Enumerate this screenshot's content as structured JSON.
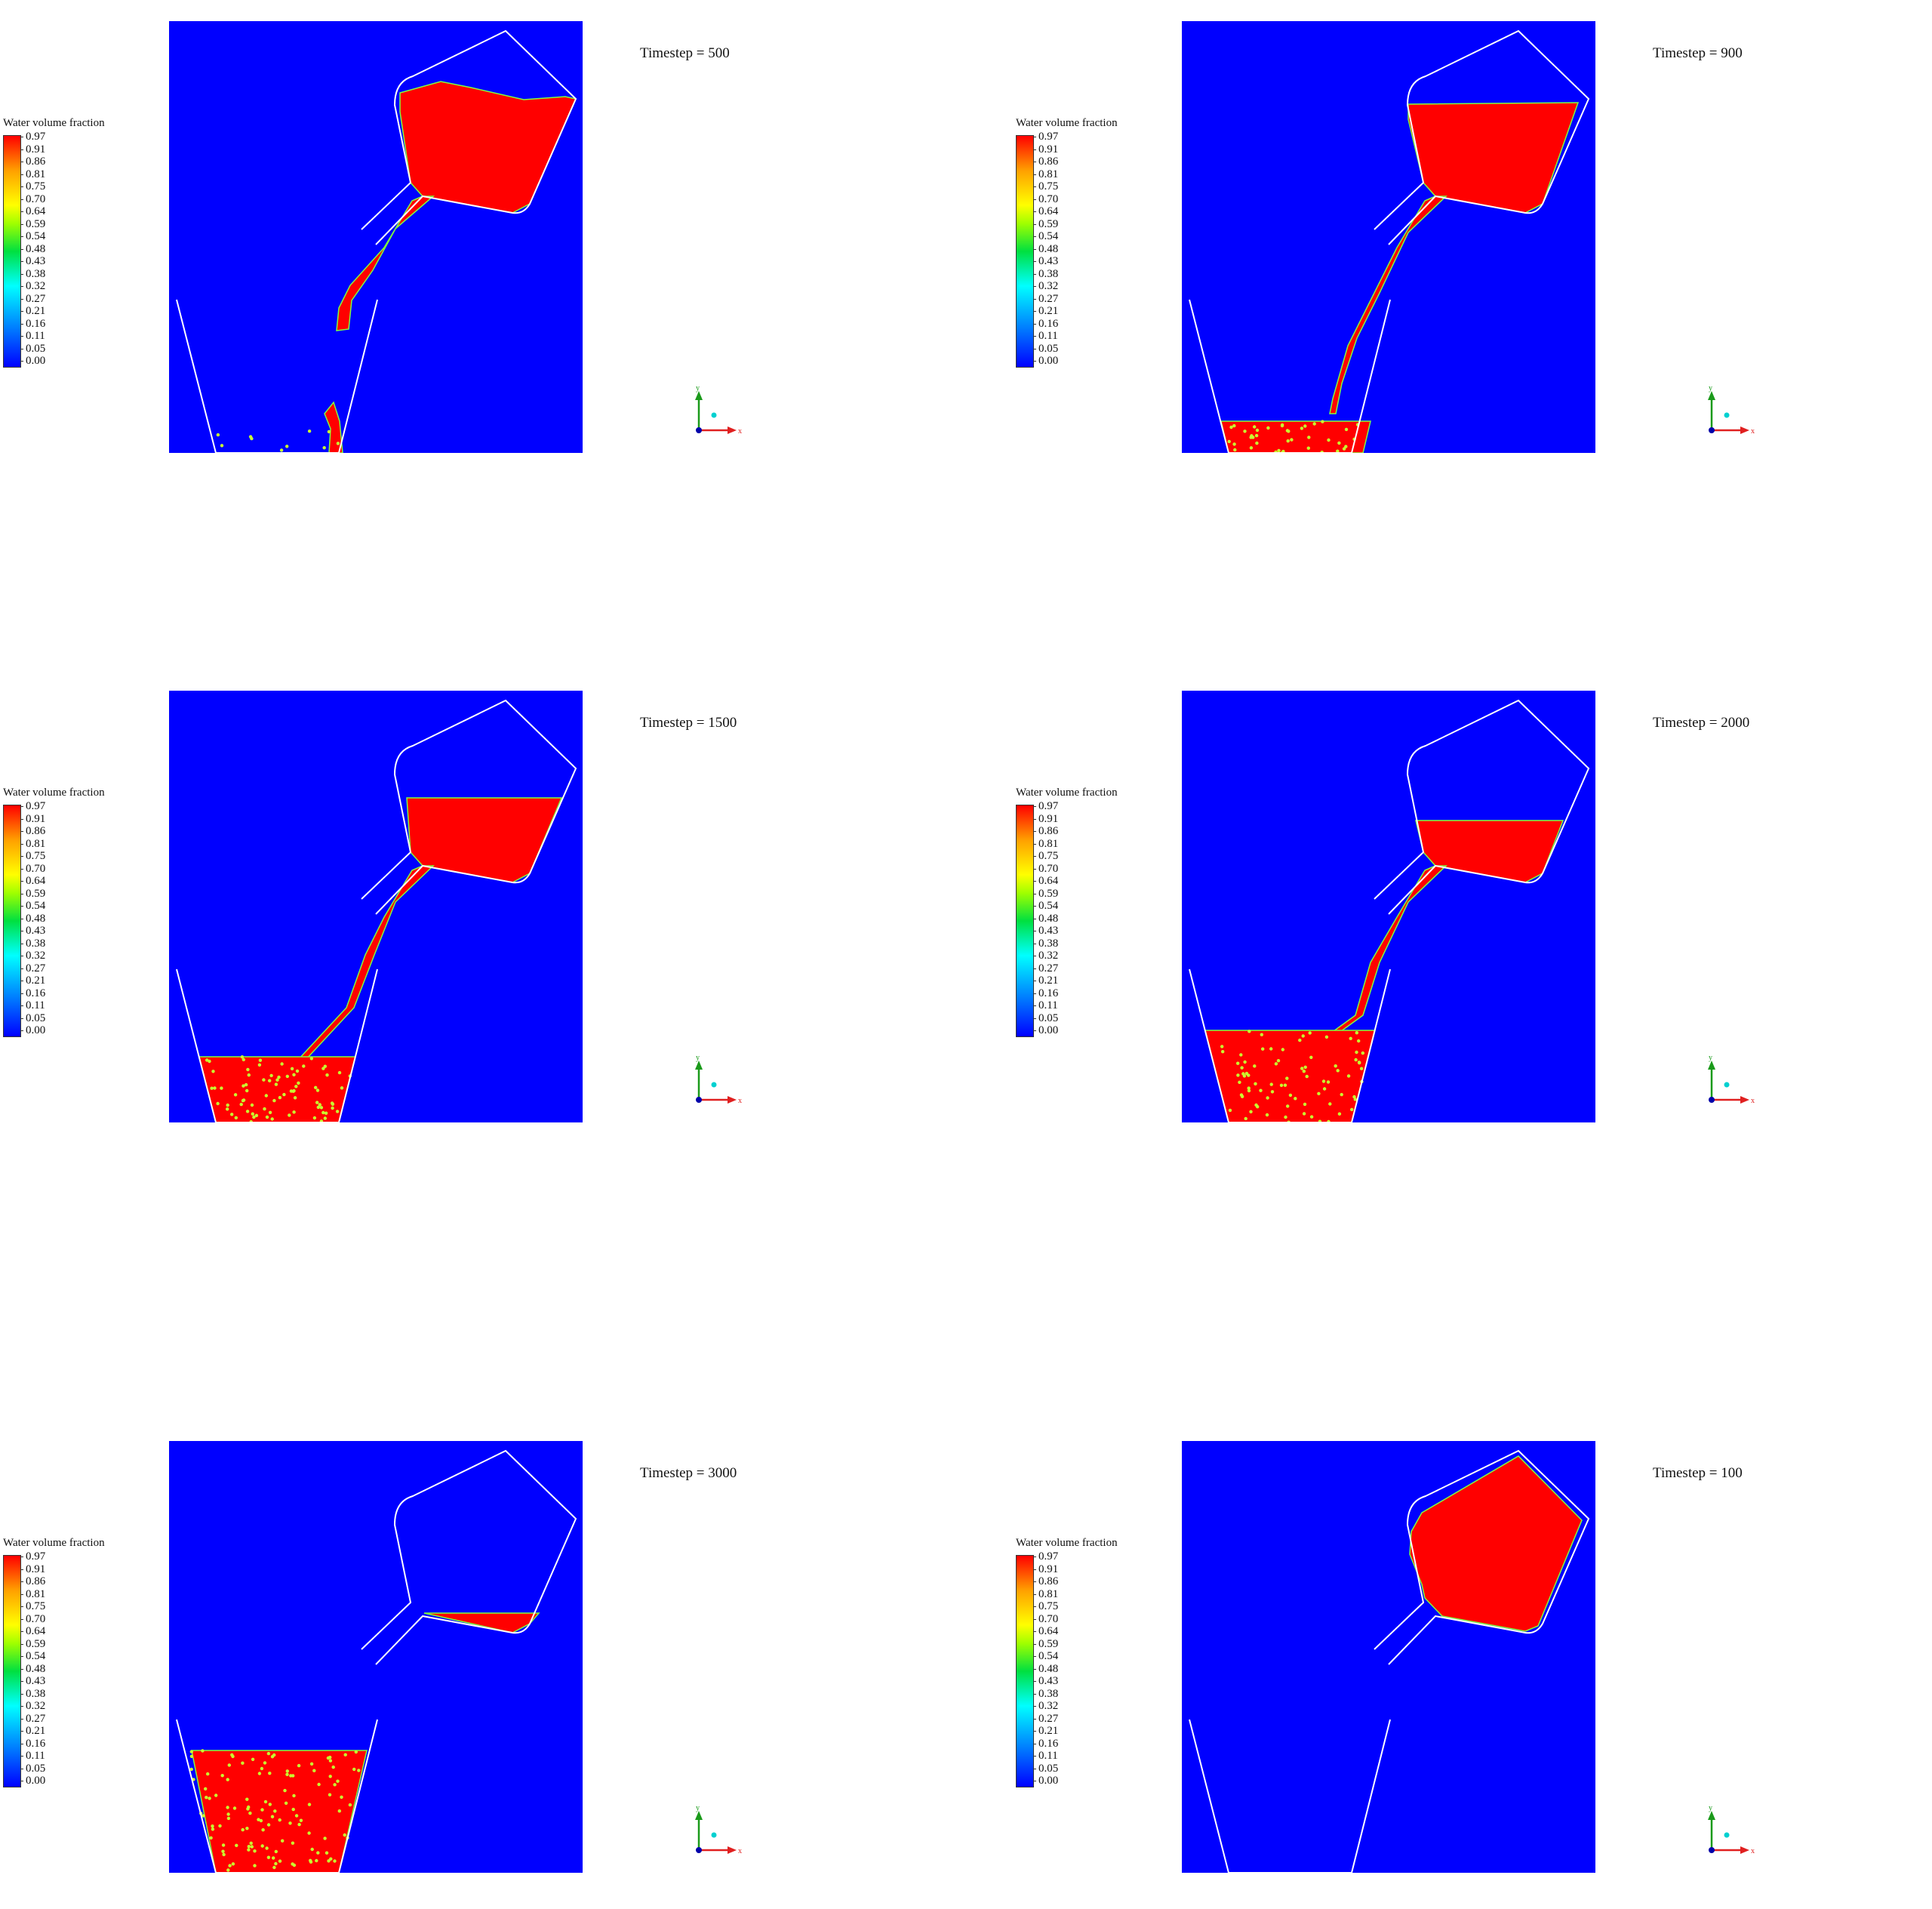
{
  "legend": {
    "title": "Water volume fraction",
    "ticks": [
      "0.97",
      "0.91",
      "0.86",
      "0.81",
      "0.75",
      "0.70",
      "0.64",
      "0.59",
      "0.54",
      "0.48",
      "0.43",
      "0.38",
      "0.32",
      "0.27",
      "0.21",
      "0.16",
      "0.11",
      "0.05",
      "0.00"
    ],
    "colormap": [
      "#0000ff",
      "#00ffff",
      "#00e040",
      "#ffff00",
      "#ff0000"
    ]
  },
  "axes_triad": {
    "x_label": "x",
    "y_label": "y"
  },
  "colors": {
    "background": "#0000ff",
    "water": "#ff0000",
    "interface": "#7fff3f",
    "walls": "#ffffff"
  },
  "panels": [
    {
      "label": "Timestep = 500"
    },
    {
      "label": "Timestep = 900"
    },
    {
      "label": "Timestep = 1500"
    },
    {
      "label": "Timestep = 2000"
    },
    {
      "label": "Timestep = 3000"
    },
    {
      "label": "Timestep = 100"
    }
  ]
}
